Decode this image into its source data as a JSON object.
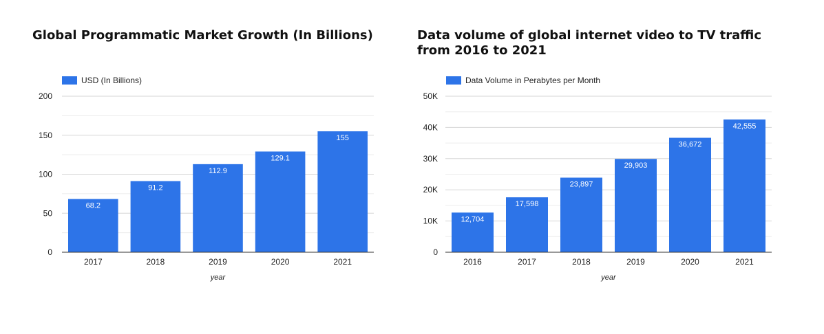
{
  "chart_data": [
    {
      "type": "bar",
      "title": "Global Programmatic Market Growth (In Billions)",
      "xlabel": "year",
      "ylabel": "",
      "categories": [
        "2017",
        "2018",
        "2019",
        "2020",
        "2021"
      ],
      "series": [
        {
          "name": "USD (In Billions)",
          "values": [
            68.2,
            91.2,
            112.9,
            129.1,
            155
          ],
          "labels": [
            "68.2",
            "91.2",
            "112.9",
            "129.1",
            "155"
          ]
        }
      ],
      "ylim": [
        0,
        200
      ],
      "yticks": [
        0,
        50,
        100,
        150,
        200
      ],
      "ytick_labels": [
        "0",
        "50",
        "100",
        "150",
        "200"
      ],
      "grid": true,
      "legend": "top-left",
      "color": "#2d74e8"
    },
    {
      "type": "bar",
      "title": "Data volume of global internet video to TV traffic from 2016 to 2021",
      "xlabel": "year",
      "ylabel": "",
      "categories": [
        "2016",
        "2017",
        "2018",
        "2019",
        "2020",
        "2021"
      ],
      "series": [
        {
          "name": "Data Volume in Perabytes per Month",
          "values": [
            12704,
            17598,
            23897,
            29903,
            36672,
            42555
          ],
          "labels": [
            "12,704",
            "17,598",
            "23,897",
            "29,903",
            "36,672",
            "42,555"
          ]
        }
      ],
      "ylim": [
        0,
        50000
      ],
      "yticks": [
        0,
        10000,
        20000,
        30000,
        40000,
        50000
      ],
      "ytick_labels": [
        "0",
        "10K",
        "20K",
        "30K",
        "40K",
        "50K"
      ],
      "grid": true,
      "legend": "top-left",
      "color": "#2d74e8"
    }
  ]
}
